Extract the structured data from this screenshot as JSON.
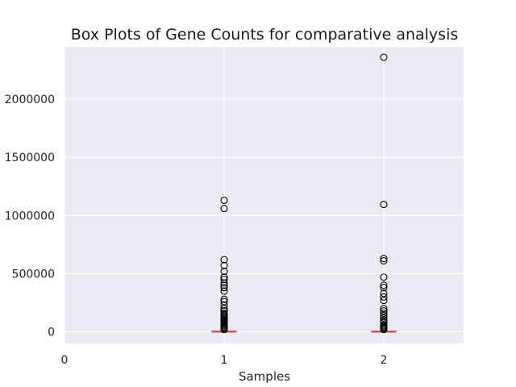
{
  "chart_data": {
    "type": "box",
    "title": "Box Plots of Gene Counts for comparative analysis",
    "xlabel": "Samples",
    "ylabel": "",
    "xlim": [
      0,
      2.5
    ],
    "ylim": [
      -100000,
      2450000
    ],
    "x_ticks": [
      0,
      1,
      2
    ],
    "y_ticks": [
      0,
      500000,
      1000000,
      1500000,
      2000000
    ],
    "grid": true,
    "series": [
      {
        "x": 1,
        "whisker_low": 0,
        "q1": 0,
        "median": 2000,
        "q3": 5000,
        "whisker_high": 12000,
        "outliers": [
          1130000,
          1060000,
          620000,
          570000,
          520000,
          470000,
          450000,
          420000,
          400000,
          380000,
          350000,
          280000,
          260000,
          230000,
          200000,
          180000,
          160000,
          150000,
          140000,
          130000,
          120000,
          110000,
          100000,
          90000,
          80000,
          70000,
          60000,
          50000,
          40000,
          30000,
          20000
        ]
      },
      {
        "x": 2,
        "whisker_low": 0,
        "q1": 0,
        "median": 2000,
        "q3": 5000,
        "whisker_high": 12000,
        "outliers": [
          2360000,
          1095000,
          630000,
          610000,
          470000,
          400000,
          380000,
          330000,
          300000,
          270000,
          200000,
          180000,
          160000,
          140000,
          120000,
          100000,
          90000,
          80000,
          60000,
          50000,
          40000,
          30000,
          20000
        ]
      }
    ]
  },
  "colors": {
    "plot_background": "#eaeaf2",
    "grid": "#ffffff",
    "median": "#c44e52",
    "outlier_edge": "#000000",
    "box": "#4c4c4c"
  }
}
